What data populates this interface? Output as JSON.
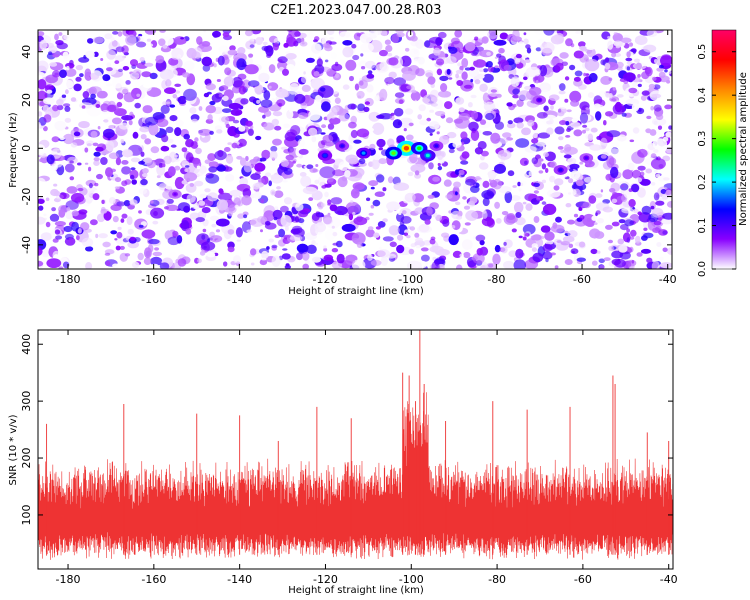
{
  "title": "C2E1.2023.047.00.28.R03",
  "chart_data": [
    {
      "type": "heatmap",
      "xlabel": "Height of straight line (km)",
      "ylabel": "Frequency (Hz)",
      "xlim": [
        -187,
        -39
      ],
      "ylim": [
        -50,
        49
      ],
      "xticks": [
        -180,
        -160,
        -140,
        -120,
        -100,
        -80,
        -60,
        -40
      ],
      "yticks": [
        -40,
        -20,
        0,
        20,
        40
      ],
      "colorbar": {
        "label": "Normalized spectral amplitude",
        "range": [
          0,
          0.55
        ],
        "ticks": [
          0.0,
          0.1,
          0.2,
          0.3,
          0.4,
          0.5
        ],
        "colors": [
          "#ffffff",
          "#8800ff",
          "#0000ff",
          "#00ffff",
          "#00ff00",
          "#ffff00",
          "#ff8800",
          "#ff0000",
          "#ff0066"
        ]
      },
      "background_level_range": [
        0.0,
        0.12
      ],
      "notable_features": [
        {
          "x": -101,
          "y": 0,
          "value": 0.45
        },
        {
          "x": -104,
          "y": -2,
          "value": 0.3
        },
        {
          "x": -98,
          "y": 0,
          "value": 0.28
        },
        {
          "x": -111,
          "y": -2,
          "value": 0.18
        },
        {
          "x": -120,
          "y": -3,
          "value": 0.15
        },
        {
          "x": -116,
          "y": 1,
          "value": 0.12
        },
        {
          "x": -96,
          "y": -3,
          "value": 0.22
        },
        {
          "x": -94,
          "y": 1,
          "value": 0.12
        },
        {
          "x": -65,
          "y": -9,
          "value": 0.12
        },
        {
          "x": -59,
          "y": -4,
          "value": 0.1
        },
        {
          "x": -70,
          "y": 20,
          "value": 0.1
        },
        {
          "x": -155,
          "y": -19,
          "value": 0.08
        }
      ],
      "signal_band_x": [
        -100,
        -98
      ]
    },
    {
      "type": "line",
      "xlabel": "Height of straight line (km)",
      "ylabel": "SNR (10 * v/v)",
      "xlim": [
        -187,
        -39
      ],
      "ylim": [
        5,
        425
      ],
      "xticks": [
        -180,
        -160,
        -140,
        -120,
        -100,
        -80,
        -60,
        -40
      ],
      "yticks": [
        100,
        200,
        300,
        400
      ],
      "color": "#ee3333",
      "noise_band": {
        "low": [
          20,
          40
        ],
        "high": [
          150,
          210
        ]
      },
      "peaks": [
        {
          "x": -185,
          "y": 260
        },
        {
          "x": -167,
          "y": 295
        },
        {
          "x": -150,
          "y": 278
        },
        {
          "x": -140,
          "y": 275
        },
        {
          "x": -131,
          "y": 230
        },
        {
          "x": -122,
          "y": 290
        },
        {
          "x": -114,
          "y": 270
        },
        {
          "x": -102,
          "y": 350
        },
        {
          "x": -100.5,
          "y": 345
        },
        {
          "x": -99,
          "y": 300
        },
        {
          "x": -98,
          "y": 425
        },
        {
          "x": -97,
          "y": 330
        },
        {
          "x": -92,
          "y": 265
        },
        {
          "x": -81,
          "y": 300
        },
        {
          "x": -73,
          "y": 285
        },
        {
          "x": -63,
          "y": 290
        },
        {
          "x": -53,
          "y": 345
        },
        {
          "x": -52.5,
          "y": 330
        },
        {
          "x": -45,
          "y": 245
        },
        {
          "x": -40,
          "y": 230
        }
      ]
    }
  ]
}
